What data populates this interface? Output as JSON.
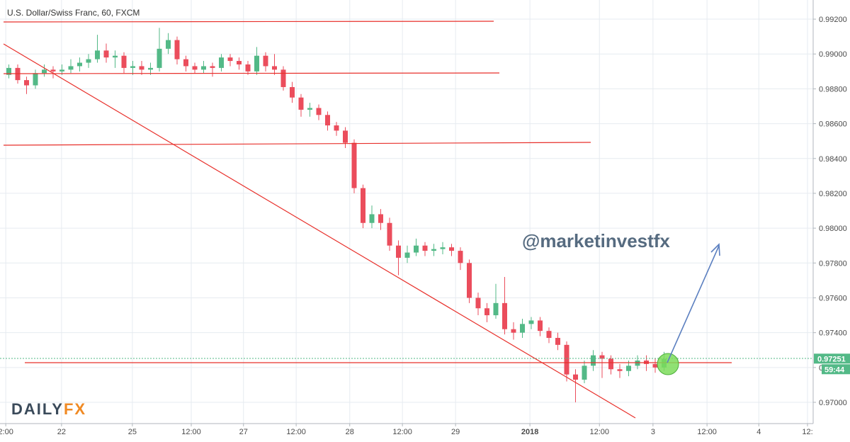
{
  "chart_data": {
    "type": "candlestick",
    "title": "U.S. Dollar/Swiss Franc, 60, FXCM",
    "watermark": "@marketinvestfx",
    "logo": [
      "DAILY",
      "FX"
    ],
    "countdown": "59:44",
    "last_price": 0.97251,
    "up_color": "#53b987",
    "down_color": "#eb4d5c",
    "grid": true,
    "xlim": [
      0,
      183.68
    ],
    "ylim": [
      0.96878,
      0.9931
    ],
    "xticks": [
      {
        "value": 1.3,
        "label": "2:00"
      },
      {
        "value": 13.9,
        "label": "22"
      },
      {
        "value": 29.9,
        "label": "25"
      },
      {
        "value": 43.2,
        "label": "12:00"
      },
      {
        "value": 55,
        "label": "27"
      },
      {
        "value": 66.9,
        "label": "12:00"
      },
      {
        "value": 79,
        "label": "28"
      },
      {
        "value": 90.9,
        "label": "12:00"
      },
      {
        "value": 102.9,
        "label": "29"
      },
      {
        "value": 119.7,
        "label": "2018"
      },
      {
        "value": 135.4,
        "label": "12:00"
      },
      {
        "value": 147.5,
        "label": "3"
      },
      {
        "value": 159.7,
        "label": "12:00"
      },
      {
        "value": 171.4,
        "label": "4"
      },
      {
        "value": 182.4,
        "label": "12:"
      }
    ],
    "yticks": [
      {
        "value": 0.97,
        "label": "0.97000"
      },
      {
        "value": 0.972,
        "label": "0.97200"
      },
      {
        "value": 0.974,
        "label": "0.97400"
      },
      {
        "value": 0.976,
        "label": "0.97600"
      },
      {
        "value": 0.978,
        "label": "0.97800"
      },
      {
        "value": 0.98,
        "label": "0.98000"
      },
      {
        "value": 0.982,
        "label": "0.98200"
      },
      {
        "value": 0.984,
        "label": "0.98400"
      },
      {
        "value": 0.986,
        "label": "0.98600"
      },
      {
        "value": 0.988,
        "label": "0.98800"
      },
      {
        "value": 0.99,
        "label": "0.99000"
      },
      {
        "value": 0.992,
        "label": "0.99200"
      }
    ],
    "x": [
      2,
      4,
      6,
      8,
      10,
      12,
      14,
      16,
      18,
      20,
      22,
      24,
      26,
      28,
      30,
      32,
      34,
      36,
      38,
      40,
      42,
      44,
      46,
      48,
      50,
      52,
      54,
      56,
      58,
      60,
      62,
      64,
      66,
      68,
      70,
      72,
      74,
      76,
      78,
      80,
      82,
      84,
      86,
      88,
      90,
      92,
      94,
      96,
      98,
      100,
      102,
      104,
      106,
      108,
      110,
      112,
      114,
      116,
      118,
      120,
      122,
      124,
      126,
      128,
      130,
      132,
      134,
      136,
      138,
      140,
      142,
      144,
      146,
      148,
      150
    ],
    "open": [
      0.9888,
      0.9892,
      0.9885,
      0.9882,
      0.9889,
      0.9891,
      0.989,
      0.9891,
      0.9893,
      0.9895,
      0.9897,
      0.9902,
      0.9898,
      0.9899,
      0.9892,
      0.9893,
      0.9891,
      0.9892,
      0.9903,
      0.9908,
      0.9897,
      0.9893,
      0.9891,
      0.9893,
      0.9892,
      0.9898,
      0.9896,
      0.9894,
      0.989,
      0.9899,
      0.9893,
      0.9891,
      0.9881,
      0.9875,
      0.9868,
      0.9869,
      0.9865,
      0.9859,
      0.9856,
      0.9849,
      0.9823,
      0.9803,
      0.9808,
      0.9803,
      0.979,
      0.9783,
      0.9786,
      0.979,
      0.9787,
      0.9788,
      0.9789,
      0.9787,
      0.978,
      0.976,
      0.9754,
      0.975,
      0.9757,
      0.9742,
      0.974,
      0.9745,
      0.9747,
      0.9741,
      0.9737,
      0.9733,
      0.9716,
      0.9713,
      0.9721,
      0.9727,
      0.9725,
      0.9719,
      0.9718,
      0.9721,
      0.9724,
      0.9722,
      0.972
    ],
    "close": [
      0.9892,
      0.9885,
      0.9882,
      0.9889,
      0.9891,
      0.989,
      0.9891,
      0.9893,
      0.9895,
      0.9897,
      0.9902,
      0.9898,
      0.9899,
      0.9892,
      0.9893,
      0.9891,
      0.9892,
      0.9903,
      0.9908,
      0.9897,
      0.9893,
      0.9891,
      0.9893,
      0.9892,
      0.9898,
      0.9896,
      0.9894,
      0.989,
      0.9899,
      0.9893,
      0.9891,
      0.9881,
      0.9875,
      0.9868,
      0.9869,
      0.9865,
      0.9859,
      0.9856,
      0.9849,
      0.9823,
      0.9803,
      0.9808,
      0.9803,
      0.979,
      0.9783,
      0.9786,
      0.979,
      0.9787,
      0.9788,
      0.9789,
      0.9787,
      0.978,
      0.976,
      0.9754,
      0.975,
      0.9757,
      0.9742,
      0.974,
      0.9745,
      0.9747,
      0.9741,
      0.9737,
      0.9733,
      0.9716,
      0.9713,
      0.9721,
      0.9727,
      0.9725,
      0.9719,
      0.9718,
      0.9721,
      0.9724,
      0.9722,
      0.972,
      0.9725
    ],
    "high": [
      0.9894,
      0.9894,
      0.9887,
      0.9891,
      0.9894,
      0.9893,
      0.9894,
      0.9897,
      0.9898,
      0.99,
      0.9911,
      0.9906,
      0.9902,
      0.9901,
      0.9896,
      0.9896,
      0.9895,
      0.9915,
      0.9912,
      0.991,
      0.9899,
      0.9895,
      0.9896,
      0.9895,
      0.99,
      0.99,
      0.9898,
      0.9896,
      0.9904,
      0.9901,
      0.99,
      0.9893,
      0.9884,
      0.9877,
      0.9872,
      0.9871,
      0.9867,
      0.9861,
      0.9858,
      0.9851,
      0.9825,
      0.9813,
      0.9811,
      0.9806,
      0.9793,
      0.979,
      0.9794,
      0.9792,
      0.9791,
      0.9792,
      0.9791,
      0.9789,
      0.9782,
      0.9763,
      0.9757,
      0.9768,
      0.9772,
      0.9746,
      0.9748,
      0.9749,
      0.9749,
      0.9743,
      0.974,
      0.9735,
      0.9719,
      0.9724,
      0.973,
      0.9729,
      0.9727,
      0.9722,
      0.9724,
      0.9727,
      0.9727,
      0.9725,
      0.9729
    ],
    "low": [
      0.9886,
      0.9883,
      0.9877,
      0.988,
      0.9887,
      0.9886,
      0.9888,
      0.9889,
      0.989,
      0.9892,
      0.9895,
      0.9895,
      0.9892,
      0.9889,
      0.9888,
      0.9888,
      0.9888,
      0.989,
      0.99,
      0.9894,
      0.989,
      0.9889,
      0.9889,
      0.9887,
      0.989,
      0.9893,
      0.9891,
      0.9888,
      0.9888,
      0.989,
      0.9888,
      0.9879,
      0.9872,
      0.9864,
      0.9864,
      0.9862,
      0.9856,
      0.9853,
      0.9846,
      0.982,
      0.98,
      0.98,
      0.9799,
      0.9787,
      0.9773,
      0.978,
      0.9784,
      0.9784,
      0.9784,
      0.9785,
      0.9784,
      0.9776,
      0.9757,
      0.975,
      0.9746,
      0.9748,
      0.9739,
      0.9736,
      0.9737,
      0.9742,
      0.9738,
      0.9734,
      0.973,
      0.9712,
      0.97,
      0.9711,
      0.9718,
      0.9714,
      0.9716,
      0.9714,
      0.9715,
      0.9719,
      0.9718,
      0.9717,
      0.9718
    ]
  }
}
